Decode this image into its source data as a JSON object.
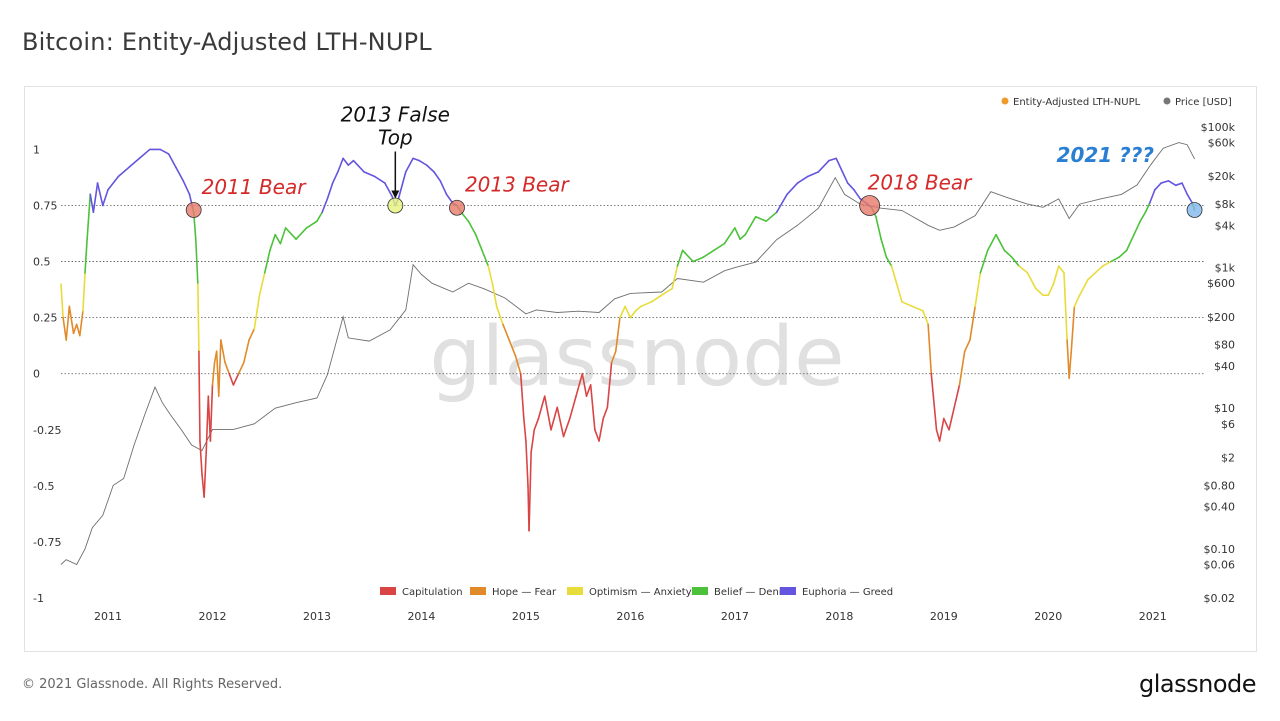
{
  "page": {
    "title": "Bitcoin: Entity-Adjusted LTH-NUPL",
    "copyright": "© 2021 Glassnode. All Rights Reserved.",
    "logo": "glassnode",
    "watermark": "glassnode"
  },
  "chart_data": {
    "type": "line",
    "title": "Bitcoin: Entity-Adjusted LTH-NUPL",
    "top_legend": [
      {
        "name": "Entity-Adjusted LTH-NUPL",
        "color": "#f09a2c"
      },
      {
        "name": "Price [USD]",
        "color": "#777777"
      }
    ],
    "zone_legend": [
      {
        "name": "Capitulation",
        "color": "#d94545"
      },
      {
        "name": "Hope — Fear",
        "color": "#e08a2a"
      },
      {
        "name": "Optimism — Anxiety",
        "color": "#e8dc3a"
      },
      {
        "name": "Belief — Denial",
        "color": "#4cc23a"
      },
      {
        "name": "Euphoria — Greed",
        "color": "#6355e0"
      }
    ],
    "x_ticks": [
      "2011",
      "2012",
      "2013",
      "2014",
      "2015",
      "2016",
      "2017",
      "2018",
      "2019",
      "2020",
      "2021"
    ],
    "x_range": [
      2010.55,
      2021.5
    ],
    "y_left_ticks": [
      {
        "value": 1,
        "label": "1"
      },
      {
        "value": 0.75,
        "label": "0.75"
      },
      {
        "value": 0.5,
        "label": "0.5"
      },
      {
        "value": 0.25,
        "label": "0.25"
      },
      {
        "value": 0,
        "label": "0"
      },
      {
        "value": -0.25,
        "label": "-0.25"
      },
      {
        "value": -0.5,
        "label": "-0.5"
      },
      {
        "value": -0.75,
        "label": "-0.75"
      },
      {
        "value": -1,
        "label": "-1"
      }
    ],
    "y_left_range": [
      -1,
      1.1
    ],
    "y_right_ticks": [
      {
        "value": 100000,
        "label": "$100k"
      },
      {
        "value": 60000,
        "label": "$60k"
      },
      {
        "value": 20000,
        "label": "$20k"
      },
      {
        "value": 8000,
        "label": "$8k"
      },
      {
        "value": 4000,
        "label": "$4k"
      },
      {
        "value": 1000,
        "label": "$1k"
      },
      {
        "value": 600,
        "label": "$600"
      },
      {
        "value": 200,
        "label": "$200"
      },
      {
        "value": 80,
        "label": "$80"
      },
      {
        "value": 40,
        "label": "$40"
      },
      {
        "value": 10,
        "label": "$10"
      },
      {
        "value": 6,
        "label": "$6"
      },
      {
        "value": 2,
        "label": "$2"
      },
      {
        "value": 0.8,
        "label": "$0.80"
      },
      {
        "value": 0.4,
        "label": "$0.40"
      },
      {
        "value": 0.1,
        "label": "$0.10"
      },
      {
        "value": 0.06,
        "label": "$0.06"
      },
      {
        "value": 0.02,
        "label": "$0.02"
      }
    ],
    "y_right_scale": "log",
    "y_right_range": [
      0.02,
      100000
    ],
    "grid": "dotted horizontal at 0, 0.25, 0.5, 0.75",
    "nupl_series": {
      "name": "Entity-Adjusted LTH-NUPL",
      "points": [
        [
          2010.55,
          0.4
        ],
        [
          2010.57,
          0.25
        ],
        [
          2010.6,
          0.15
        ],
        [
          2010.63,
          0.3
        ],
        [
          2010.67,
          0.18
        ],
        [
          2010.7,
          0.22
        ],
        [
          2010.73,
          0.17
        ],
        [
          2010.76,
          0.28
        ],
        [
          2010.78,
          0.45
        ],
        [
          2010.8,
          0.6
        ],
        [
          2010.83,
          0.8
        ],
        [
          2010.86,
          0.72
        ],
        [
          2010.9,
          0.85
        ],
        [
          2010.95,
          0.75
        ],
        [
          2011.0,
          0.82
        ],
        [
          2011.1,
          0.88
        ],
        [
          2011.2,
          0.92
        ],
        [
          2011.3,
          0.96
        ],
        [
          2011.4,
          1.0
        ],
        [
          2011.5,
          1.0
        ],
        [
          2011.58,
          0.98
        ],
        [
          2011.65,
          0.92
        ],
        [
          2011.72,
          0.86
        ],
        [
          2011.78,
          0.8
        ],
        [
          2011.81,
          0.74
        ],
        [
          2011.82,
          0.72
        ],
        [
          2011.84,
          0.6
        ],
        [
          2011.86,
          0.4
        ],
        [
          2011.87,
          0.1
        ],
        [
          2011.88,
          -0.3
        ],
        [
          2011.9,
          -0.45
        ],
        [
          2011.92,
          -0.55
        ],
        [
          2011.94,
          -0.35
        ],
        [
          2011.96,
          -0.1
        ],
        [
          2011.98,
          -0.3
        ],
        [
          2012.0,
          -0.05
        ],
        [
          2012.02,
          0.05
        ],
        [
          2012.04,
          0.1
        ],
        [
          2012.06,
          -0.1
        ],
        [
          2012.08,
          0.15
        ],
        [
          2012.12,
          0.05
        ],
        [
          2012.16,
          0.0
        ],
        [
          2012.2,
          -0.05
        ],
        [
          2012.25,
          0.0
        ],
        [
          2012.3,
          0.05
        ],
        [
          2012.35,
          0.15
        ],
        [
          2012.4,
          0.2
        ],
        [
          2012.45,
          0.35
        ],
        [
          2012.5,
          0.45
        ],
        [
          2012.55,
          0.55
        ],
        [
          2012.6,
          0.62
        ],
        [
          2012.65,
          0.58
        ],
        [
          2012.7,
          0.65
        ],
        [
          2012.8,
          0.6
        ],
        [
          2012.9,
          0.65
        ],
        [
          2013.0,
          0.68
        ],
        [
          2013.05,
          0.72
        ],
        [
          2013.1,
          0.78
        ],
        [
          2013.15,
          0.85
        ],
        [
          2013.2,
          0.9
        ],
        [
          2013.25,
          0.96
        ],
        [
          2013.3,
          0.93
        ],
        [
          2013.35,
          0.95
        ],
        [
          2013.45,
          0.9
        ],
        [
          2013.55,
          0.88
        ],
        [
          2013.65,
          0.85
        ],
        [
          2013.72,
          0.79
        ],
        [
          2013.75,
          0.75
        ],
        [
          2013.78,
          0.78
        ],
        [
          2013.85,
          0.9
        ],
        [
          2013.92,
          0.96
        ],
        [
          2013.98,
          0.95
        ],
        [
          2014.05,
          0.93
        ],
        [
          2014.12,
          0.9
        ],
        [
          2014.18,
          0.86
        ],
        [
          2014.24,
          0.8
        ],
        [
          2014.3,
          0.76
        ],
        [
          2014.34,
          0.75
        ],
        [
          2014.38,
          0.72
        ],
        [
          2014.45,
          0.68
        ],
        [
          2014.52,
          0.62
        ],
        [
          2014.58,
          0.55
        ],
        [
          2014.64,
          0.48
        ],
        [
          2014.68,
          0.4
        ],
        [
          2014.72,
          0.3
        ],
        [
          2014.78,
          0.22
        ],
        [
          2014.84,
          0.15
        ],
        [
          2014.9,
          0.08
        ],
        [
          2014.95,
          0.0
        ],
        [
          2014.98,
          -0.2
        ],
        [
          2015.0,
          -0.3
        ],
        [
          2015.02,
          -0.5
        ],
        [
          2015.03,
          -0.7
        ],
        [
          2015.05,
          -0.35
        ],
        [
          2015.08,
          -0.25
        ],
        [
          2015.12,
          -0.2
        ],
        [
          2015.18,
          -0.1
        ],
        [
          2015.24,
          -0.25
        ],
        [
          2015.3,
          -0.15
        ],
        [
          2015.36,
          -0.28
        ],
        [
          2015.42,
          -0.2
        ],
        [
          2015.48,
          -0.1
        ],
        [
          2015.54,
          0.0
        ],
        [
          2015.58,
          -0.1
        ],
        [
          2015.62,
          -0.05
        ],
        [
          2015.66,
          -0.25
        ],
        [
          2015.7,
          -0.3
        ],
        [
          2015.74,
          -0.2
        ],
        [
          2015.78,
          -0.15
        ],
        [
          2015.82,
          0.05
        ],
        [
          2015.86,
          0.1
        ],
        [
          2015.9,
          0.25
        ],
        [
          2015.95,
          0.3
        ],
        [
          2016.0,
          0.25
        ],
        [
          2016.05,
          0.28
        ],
        [
          2016.1,
          0.3
        ],
        [
          2016.2,
          0.32
        ],
        [
          2016.3,
          0.35
        ],
        [
          2016.4,
          0.38
        ],
        [
          2016.45,
          0.48
        ],
        [
          2016.5,
          0.55
        ],
        [
          2016.6,
          0.5
        ],
        [
          2016.7,
          0.52
        ],
        [
          2016.8,
          0.55
        ],
        [
          2016.9,
          0.58
        ],
        [
          2017.0,
          0.65
        ],
        [
          2017.05,
          0.6
        ],
        [
          2017.1,
          0.62
        ],
        [
          2017.2,
          0.7
        ],
        [
          2017.3,
          0.68
        ],
        [
          2017.4,
          0.72
        ],
        [
          2017.5,
          0.8
        ],
        [
          2017.6,
          0.85
        ],
        [
          2017.7,
          0.88
        ],
        [
          2017.8,
          0.9
        ],
        [
          2017.9,
          0.95
        ],
        [
          2017.97,
          0.96
        ],
        [
          2018.03,
          0.9
        ],
        [
          2018.08,
          0.85
        ],
        [
          2018.14,
          0.82
        ],
        [
          2018.2,
          0.78
        ],
        [
          2018.26,
          0.76
        ],
        [
          2018.31,
          0.74
        ],
        [
          2018.35,
          0.7
        ],
        [
          2018.4,
          0.6
        ],
        [
          2018.45,
          0.52
        ],
        [
          2018.5,
          0.48
        ],
        [
          2018.55,
          0.4
        ],
        [
          2018.6,
          0.32
        ],
        [
          2018.7,
          0.3
        ],
        [
          2018.8,
          0.28
        ],
        [
          2018.85,
          0.22
        ],
        [
          2018.88,
          0.0
        ],
        [
          2018.9,
          -0.1
        ],
        [
          2018.93,
          -0.25
        ],
        [
          2018.96,
          -0.3
        ],
        [
          2019.0,
          -0.2
        ],
        [
          2019.05,
          -0.25
        ],
        [
          2019.1,
          -0.15
        ],
        [
          2019.15,
          -0.05
        ],
        [
          2019.2,
          0.1
        ],
        [
          2019.25,
          0.15
        ],
        [
          2019.3,
          0.3
        ],
        [
          2019.35,
          0.45
        ],
        [
          2019.42,
          0.55
        ],
        [
          2019.5,
          0.62
        ],
        [
          2019.58,
          0.55
        ],
        [
          2019.65,
          0.52
        ],
        [
          2019.72,
          0.48
        ],
        [
          2019.8,
          0.45
        ],
        [
          2019.88,
          0.38
        ],
        [
          2019.95,
          0.35
        ],
        [
          2020.0,
          0.35
        ],
        [
          2020.05,
          0.4
        ],
        [
          2020.1,
          0.48
        ],
        [
          2020.15,
          0.45
        ],
        [
          2020.18,
          0.15
        ],
        [
          2020.2,
          -0.02
        ],
        [
          2020.22,
          0.1
        ],
        [
          2020.25,
          0.3
        ],
        [
          2020.3,
          0.35
        ],
        [
          2020.38,
          0.42
        ],
        [
          2020.45,
          0.45
        ],
        [
          2020.52,
          0.48
        ],
        [
          2020.6,
          0.5
        ],
        [
          2020.68,
          0.52
        ],
        [
          2020.75,
          0.55
        ],
        [
          2020.82,
          0.62
        ],
        [
          2020.88,
          0.68
        ],
        [
          2020.93,
          0.72
        ],
        [
          2020.97,
          0.76
        ],
        [
          2021.02,
          0.82
        ],
        [
          2021.08,
          0.85
        ],
        [
          2021.15,
          0.86
        ],
        [
          2021.22,
          0.84
        ],
        [
          2021.28,
          0.85
        ],
        [
          2021.33,
          0.8
        ],
        [
          2021.38,
          0.76
        ],
        [
          2021.4,
          0.73
        ]
      ]
    },
    "price_series": {
      "name": "Price [USD]",
      "points": [
        [
          2010.55,
          0.06
        ],
        [
          2010.6,
          0.07
        ],
        [
          2010.7,
          0.06
        ],
        [
          2010.78,
          0.1
        ],
        [
          2010.85,
          0.2
        ],
        [
          2010.95,
          0.3
        ],
        [
          2011.05,
          0.8
        ],
        [
          2011.15,
          1.0
        ],
        [
          2011.25,
          3.0
        ],
        [
          2011.35,
          8.0
        ],
        [
          2011.45,
          20
        ],
        [
          2011.52,
          12
        ],
        [
          2011.6,
          8
        ],
        [
          2011.7,
          5
        ],
        [
          2011.8,
          3.0
        ],
        [
          2011.9,
          2.5
        ],
        [
          2012.0,
          5
        ],
        [
          2012.2,
          5
        ],
        [
          2012.4,
          6
        ],
        [
          2012.6,
          10
        ],
        [
          2012.8,
          12
        ],
        [
          2013.0,
          14
        ],
        [
          2013.1,
          30
        ],
        [
          2013.25,
          200
        ],
        [
          2013.3,
          100
        ],
        [
          2013.5,
          90
        ],
        [
          2013.7,
          130
        ],
        [
          2013.85,
          250
        ],
        [
          2013.92,
          1100
        ],
        [
          2014.0,
          800
        ],
        [
          2014.1,
          600
        ],
        [
          2014.3,
          450
        ],
        [
          2014.45,
          600
        ],
        [
          2014.6,
          500
        ],
        [
          2014.8,
          370
        ],
        [
          2015.0,
          220
        ],
        [
          2015.1,
          250
        ],
        [
          2015.3,
          230
        ],
        [
          2015.5,
          240
        ],
        [
          2015.7,
          230
        ],
        [
          2015.85,
          360
        ],
        [
          2016.0,
          430
        ],
        [
          2016.3,
          450
        ],
        [
          2016.45,
          700
        ],
        [
          2016.7,
          620
        ],
        [
          2016.9,
          900
        ],
        [
          2017.0,
          1000
        ],
        [
          2017.2,
          1200
        ],
        [
          2017.4,
          2500
        ],
        [
          2017.6,
          4000
        ],
        [
          2017.8,
          7000
        ],
        [
          2017.96,
          19000
        ],
        [
          2018.05,
          11000
        ],
        [
          2018.2,
          8000
        ],
        [
          2018.4,
          7000
        ],
        [
          2018.6,
          6500
        ],
        [
          2018.85,
          4000
        ],
        [
          2018.96,
          3400
        ],
        [
          2019.1,
          3800
        ],
        [
          2019.3,
          5500
        ],
        [
          2019.45,
          12000
        ],
        [
          2019.6,
          10000
        ],
        [
          2019.8,
          8000
        ],
        [
          2019.95,
          7200
        ],
        [
          2020.1,
          9500
        ],
        [
          2020.2,
          5000
        ],
        [
          2020.3,
          8000
        ],
        [
          2020.5,
          9500
        ],
        [
          2020.7,
          11000
        ],
        [
          2020.85,
          15000
        ],
        [
          2020.98,
          29000
        ],
        [
          2021.1,
          50000
        ],
        [
          2021.25,
          60000
        ],
        [
          2021.33,
          56000
        ],
        [
          2021.4,
          35000
        ]
      ]
    },
    "annotations": [
      {
        "text": "2011 Bear",
        "x": 2011.82,
        "y": 0.73,
        "color": "#d42a2a",
        "marker": "#e8796b"
      },
      {
        "text": "2013 False Top",
        "x": 2013.75,
        "y": 0.75,
        "color": "#111111",
        "marker": "#e6f27a"
      },
      {
        "text": "2013 Bear",
        "x": 2014.34,
        "y": 0.74,
        "color": "#d42a2a",
        "marker": "#e8796b"
      },
      {
        "text": "2018 Bear",
        "x": 2018.29,
        "y": 0.75,
        "color": "#d42a2a",
        "marker": "#e8796b"
      },
      {
        "text": "2021 ???",
        "x": 2021.4,
        "y": 0.73,
        "color": "#2a7fd4",
        "marker": "#7fb6ee"
      }
    ]
  }
}
